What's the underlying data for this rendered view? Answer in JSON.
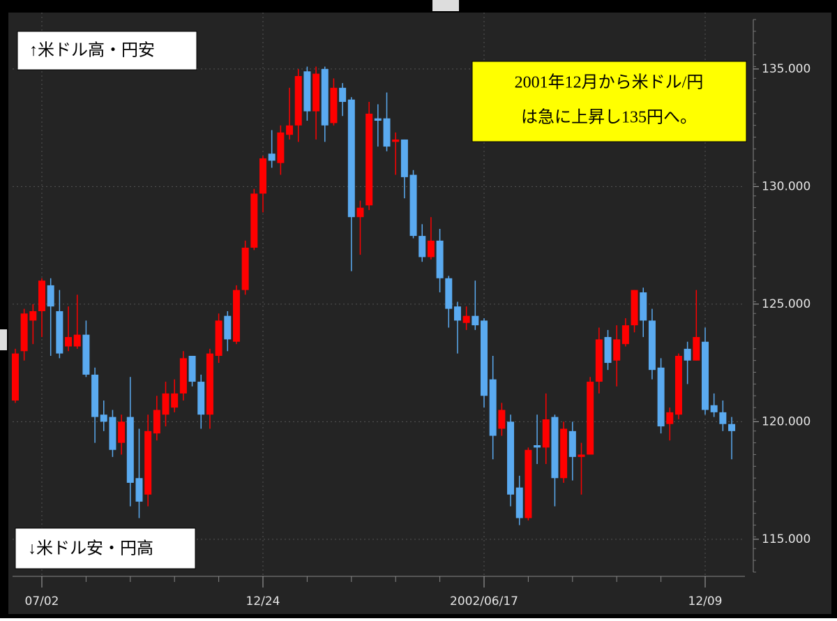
{
  "chart_data": {
    "type": "candlestick",
    "categories": [
      null,
      null,
      null,
      "07/02",
      null,
      null,
      null,
      null,
      null,
      null,
      null,
      null,
      null,
      null,
      null,
      null,
      null,
      null,
      null,
      null,
      null,
      null,
      null,
      null,
      null,
      null,
      null,
      null,
      "12/24",
      null,
      null,
      null,
      null,
      null,
      null,
      null,
      null,
      null,
      null,
      null,
      null,
      null,
      null,
      null,
      null,
      null,
      null,
      null,
      null,
      null,
      null,
      null,
      null,
      "2002/06/17",
      null,
      null,
      null,
      null,
      null,
      null,
      null,
      null,
      null,
      null,
      null,
      null,
      null,
      null,
      null,
      null,
      null,
      null,
      null,
      null,
      null,
      null,
      null,
      null,
      "12/09",
      null,
      null,
      null
    ],
    "open": [
      120.9,
      123.0,
      124.3,
      124.7,
      125.8,
      124.7,
      123.2,
      123.2,
      123.7,
      122.0,
      120.3,
      120.2,
      119.1,
      120.2,
      117.6,
      116.9,
      119.5,
      120.3,
      120.6,
      121.2,
      122.8,
      121.7,
      120.3,
      122.8,
      124.5,
      123.4,
      125.6,
      127.4,
      129.7,
      131.4,
      131.0,
      132.2,
      132.6,
      134.9,
      133.2,
      135.0,
      132.7,
      134.2,
      133.7,
      128.7,
      129.2,
      132.9,
      132.9,
      131.9,
      132.0,
      130.5,
      127.9,
      127.0,
      127.7,
      126.1,
      124.9,
      124.2,
      124.5,
      124.3,
      121.8,
      119.7,
      120.0,
      117.2,
      115.9,
      119.0,
      118.9,
      120.2,
      117.6,
      119.6,
      118.5,
      118.6,
      121.7,
      123.6,
      122.6,
      123.3,
      124.1,
      125.5,
      124.3,
      122.3,
      119.9,
      120.3,
      123.1,
      122.6,
      123.4,
      120.7,
      120.4,
      119.9
    ],
    "high": [
      123.1,
      124.8,
      125.0,
      126.1,
      126.1,
      125.6,
      124.9,
      125.4,
      124.3,
      122.3,
      120.9,
      120.5,
      120.3,
      121.9,
      119.7,
      120.3,
      121.1,
      121.7,
      121.8,
      123.0,
      122.8,
      122.0,
      123.1,
      124.6,
      124.7,
      125.8,
      127.7,
      129.9,
      131.3,
      132.4,
      132.6,
      134.2,
      135.0,
      135.1,
      135.1,
      135.1,
      134.6,
      134.4,
      133.8,
      129.4,
      133.6,
      133.5,
      134.0,
      132.3,
      132.0,
      130.7,
      128.4,
      128.7,
      128.2,
      126.2,
      125.1,
      124.9,
      126.0,
      124.4,
      122.8,
      120.8,
      120.3,
      117.7,
      118.9,
      120.3,
      121.2,
      120.3,
      120.0,
      120.0,
      119.1,
      121.9,
      124.0,
      123.9,
      124.1,
      124.4,
      125.6,
      125.7,
      124.8,
      122.7,
      120.6,
      122.9,
      123.4,
      125.6,
      124.0,
      121.2,
      120.9,
      120.2
    ],
    "low": [
      120.8,
      122.6,
      123.3,
      123.6,
      122.8,
      122.7,
      123.0,
      123.1,
      121.9,
      119.1,
      119.6,
      118.5,
      118.6,
      116.4,
      115.9,
      116.4,
      119.2,
      119.8,
      120.4,
      120.9,
      121.5,
      119.7,
      119.7,
      122.5,
      123.0,
      123.3,
      125.4,
      127.3,
      128.9,
      130.8,
      130.5,
      132.0,
      131.9,
      132.8,
      132.0,
      131.9,
      132.6,
      133.0,
      126.4,
      127.1,
      129.0,
      131.7,
      131.5,
      130.5,
      129.5,
      127.8,
      126.8,
      126.9,
      125.5,
      124.0,
      122.9,
      123.9,
      123.9,
      120.6,
      118.4,
      119.4,
      116.4,
      115.6,
      115.8,
      118.2,
      118.2,
      116.4,
      117.4,
      117.5,
      116.9,
      118.6,
      121.2,
      122.2,
      121.5,
      123.2,
      123.8,
      123.6,
      121.8,
      119.5,
      119.2,
      120.1,
      121.6,
      122.6,
      120.3,
      120.2,
      119.6,
      118.4
    ],
    "close": [
      122.9,
      124.6,
      124.7,
      126.0,
      124.9,
      122.9,
      123.6,
      123.7,
      122.0,
      120.2,
      120.0,
      118.8,
      120.0,
      117.4,
      116.6,
      119.6,
      120.5,
      121.2,
      121.2,
      122.7,
      121.7,
      120.3,
      122.9,
      124.3,
      123.5,
      125.6,
      127.4,
      129.7,
      131.2,
      131.1,
      132.3,
      132.6,
      134.7,
      133.2,
      134.8,
      132.6,
      134.2,
      133.6,
      128.7,
      129.1,
      133.1,
      132.8,
      131.7,
      132.0,
      130.4,
      127.9,
      127.0,
      127.7,
      126.1,
      124.8,
      124.3,
      124.5,
      124.1,
      121.1,
      119.4,
      120.5,
      116.9,
      115.9,
      118.8,
      118.9,
      120.1,
      117.6,
      119.7,
      118.5,
      118.6,
      121.7,
      123.5,
      122.5,
      123.5,
      124.1,
      125.6,
      124.3,
      122.2,
      119.8,
      120.4,
      122.8,
      122.6,
      123.6,
      120.5,
      120.4,
      119.9,
      119.6
    ],
    "up_color": "#ff0000",
    "down_color": "#5aaaf0",
    "ylim": [
      113.6,
      137.4
    ],
    "yticks": [
      {
        "value": 115,
        "label": "115.000"
      },
      {
        "value": 120,
        "label": "120.000"
      },
      {
        "value": 125,
        "label": "125.000"
      },
      {
        "value": 130,
        "label": "130.000"
      },
      {
        "value": 135,
        "label": "135.000"
      }
    ],
    "grid": true,
    "annotations": {
      "top_left": "↑米ドル高・円安",
      "bottom_left": "↓米ドル安・円高",
      "callout": [
        "2001年12月から米ドル/円",
        "は急に上昇し135円へ。"
      ]
    }
  }
}
